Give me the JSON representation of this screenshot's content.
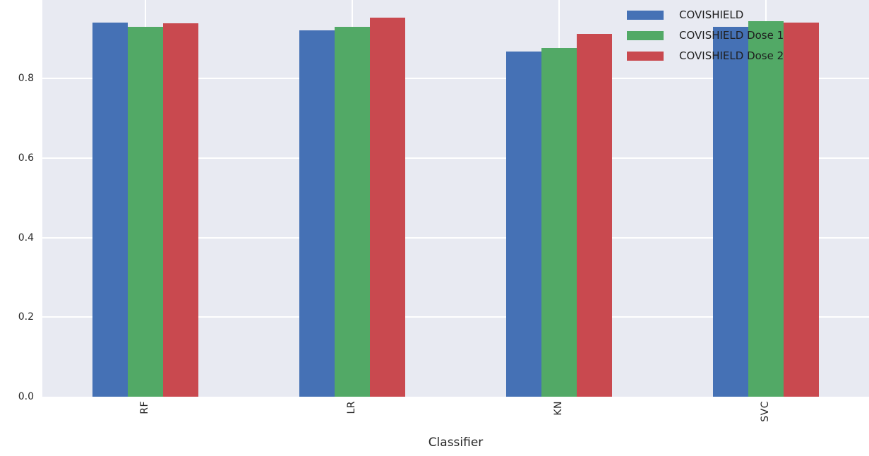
{
  "chart_data": {
    "type": "bar",
    "title": "",
    "xlabel": "Classifier",
    "ylabel": "",
    "categories": [
      "RF",
      "LR",
      "KN",
      "SVC"
    ],
    "series": [
      {
        "name": "COVISHIELD",
        "color": "#4571b5",
        "values": [
          0.942,
          0.922,
          0.868,
          0.93
        ]
      },
      {
        "name": "COVISHIELD Dose 1",
        "color": "#52a966",
        "values": [
          0.93,
          0.93,
          0.878,
          0.944
        ]
      },
      {
        "name": "COVISHIELD Dose 2",
        "color": "#c9494f",
        "values": [
          0.94,
          0.953,
          0.912,
          0.941
        ]
      }
    ],
    "ylim": [
      0.0,
      0.998
    ],
    "yticks": [
      0.0,
      0.2,
      0.4,
      0.6,
      0.8
    ],
    "ytick_labels": [
      "0.0",
      "0.2",
      "0.4",
      "0.6",
      "0.8"
    ],
    "grid": true,
    "legend_position": "upper-right",
    "plot_background": "#e8eaf2",
    "gridline_color": "#ffffff",
    "text_color": "#262626"
  }
}
